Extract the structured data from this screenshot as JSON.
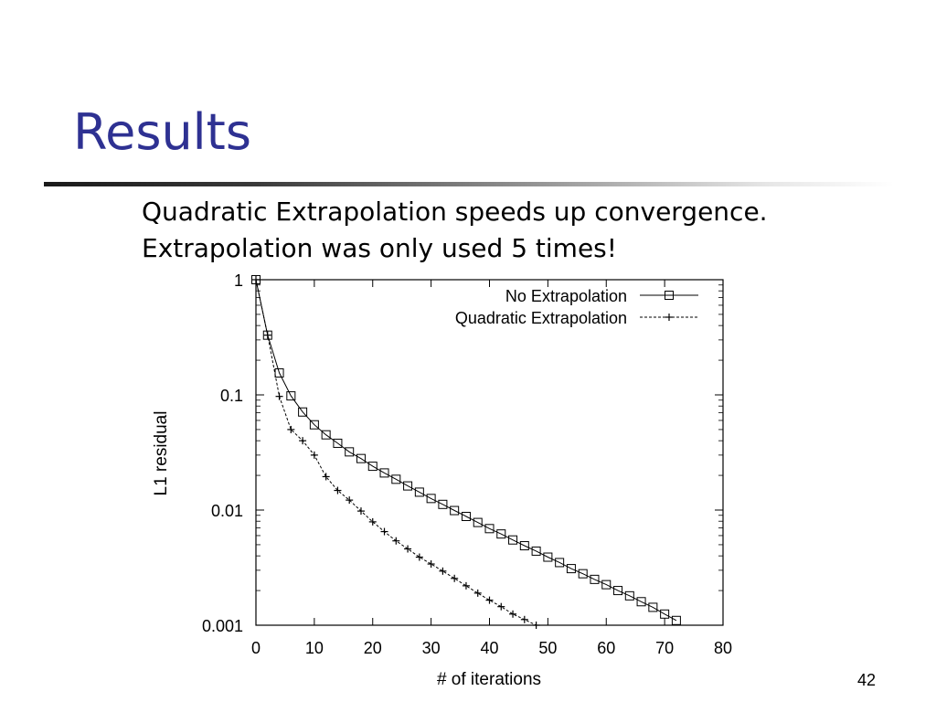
{
  "slide": {
    "title": "Results",
    "lines": [
      "Quadratic Extrapolation speeds up convergence.",
      "Extrapolation was only used 5 times!"
    ],
    "page_number": "42"
  },
  "chart_data": {
    "type": "line",
    "xlabel": "# of iterations",
    "ylabel": "L1 residual",
    "xlim": [
      0,
      80
    ],
    "ylim": [
      0.001,
      1
    ],
    "y_scale": "log",
    "x_ticks": [
      "0",
      "10",
      "20",
      "30",
      "40",
      "50",
      "60",
      "70",
      "80"
    ],
    "y_ticks": [
      "1",
      "0.1",
      "0.01",
      "0.001"
    ],
    "legend_position": "top-right",
    "grid": false,
    "series": [
      {
        "name": "No Extrapolation",
        "marker": "square",
        "line_style": "solid",
        "x": [
          0,
          2,
          4,
          6,
          8,
          10,
          12,
          14,
          16,
          18,
          20,
          22,
          24,
          26,
          28,
          30,
          32,
          34,
          36,
          38,
          40,
          42,
          44,
          46,
          48,
          50,
          52,
          54,
          56,
          58,
          60,
          62,
          64,
          66,
          68,
          70,
          72
        ],
        "y": [
          1.0,
          0.33,
          0.155,
          0.098,
          0.071,
          0.055,
          0.045,
          0.038,
          0.032,
          0.028,
          0.024,
          0.021,
          0.0185,
          0.0162,
          0.0143,
          0.0126,
          0.0112,
          0.0099,
          0.0088,
          0.0078,
          0.0069,
          0.0062,
          0.0055,
          0.0049,
          0.0044,
          0.0039,
          0.0035,
          0.0031,
          0.0028,
          0.0025,
          0.00225,
          0.002,
          0.0018,
          0.0016,
          0.00143,
          0.00125,
          0.0011
        ]
      },
      {
        "name": "Quadratic Extrapolation",
        "marker": "plus",
        "line_style": "dashed",
        "x": [
          0,
          2,
          4,
          6,
          8,
          10,
          12,
          14,
          16,
          18,
          20,
          22,
          24,
          26,
          28,
          30,
          32,
          34,
          36,
          38,
          40,
          42,
          44,
          46,
          48
        ],
        "y": [
          1.0,
          0.33,
          0.097,
          0.05,
          0.04,
          0.03,
          0.0195,
          0.0148,
          0.0122,
          0.0098,
          0.0079,
          0.0065,
          0.0054,
          0.0046,
          0.0039,
          0.0034,
          0.00295,
          0.00255,
          0.0022,
          0.0019,
          0.00165,
          0.00145,
          0.00125,
          0.00112,
          0.001
        ]
      }
    ]
  }
}
